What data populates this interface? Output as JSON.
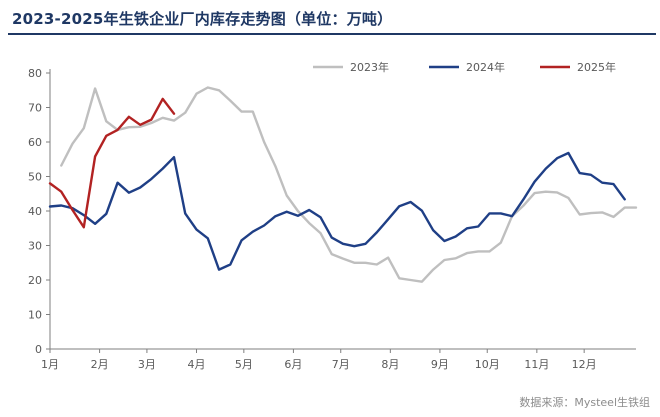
{
  "title": "2023-2025年生铁企业厂内库存走势图（单位：万吨）",
  "source": "数据来源：Mysteel生铁组",
  "chart_data": {
    "type": "line",
    "title": "2023-2025年生铁企业厂内库存走势图（单位：万吨）",
    "xlabel": "",
    "ylabel": "",
    "ylim": [
      0,
      80
    ],
    "yticks": [
      0,
      10,
      20,
      30,
      40,
      50,
      60,
      70,
      80
    ],
    "x_unit": "week",
    "x_range": [
      0,
      52
    ],
    "x_ticks": [
      {
        "label": "1月",
        "x": 0
      },
      {
        "label": "2月",
        "x": 4.4
      },
      {
        "label": "3月",
        "x": 8.6
      },
      {
        "label": "4月",
        "x": 13
      },
      {
        "label": "5月",
        "x": 17.2
      },
      {
        "label": "6月",
        "x": 21.6
      },
      {
        "label": "7月",
        "x": 25.8
      },
      {
        "label": "8月",
        "x": 30.2
      },
      {
        "label": "9月",
        "x": 34.6
      },
      {
        "label": "10月",
        "x": 38.8
      },
      {
        "label": "11月",
        "x": 43.2
      },
      {
        "label": "12月",
        "x": 47.4
      }
    ],
    "grid": false,
    "legend_position": "top-right",
    "series": [
      {
        "name": "2023年",
        "color": "#bfbfbf",
        "values": [
          [
            1,
            53.2
          ],
          [
            2,
            59.5
          ],
          [
            3,
            64
          ],
          [
            4,
            75.5
          ],
          [
            5,
            66
          ],
          [
            6,
            63.5
          ],
          [
            7,
            64.3
          ],
          [
            8,
            64.4
          ],
          [
            9,
            65.5
          ],
          [
            10,
            67
          ],
          [
            11,
            66.2
          ],
          [
            12,
            68.5
          ],
          [
            13,
            74
          ],
          [
            14,
            75.8
          ],
          [
            15,
            75
          ],
          [
            16,
            72
          ],
          [
            17,
            68.8
          ],
          [
            18,
            68.8
          ],
          [
            19,
            60
          ],
          [
            20,
            53
          ],
          [
            21,
            44.5
          ],
          [
            22,
            40
          ],
          [
            23,
            36.5
          ],
          [
            24,
            33.6
          ],
          [
            25,
            27.5
          ],
          [
            26,
            26.2
          ],
          [
            27,
            25
          ],
          [
            28,
            25
          ],
          [
            29,
            24.5
          ],
          [
            30,
            26.5
          ],
          [
            31,
            20.5
          ],
          [
            32,
            20
          ],
          [
            33,
            19.5
          ],
          [
            34,
            23
          ],
          [
            35,
            25.8
          ],
          [
            36,
            26.3
          ],
          [
            37,
            27.8
          ],
          [
            38,
            28.3
          ],
          [
            39,
            28.3
          ],
          [
            40,
            30.8
          ],
          [
            41,
            38.5
          ],
          [
            42,
            41.5
          ],
          [
            43,
            45.2
          ],
          [
            44,
            45.6
          ],
          [
            45,
            45.4
          ],
          [
            46,
            43.8
          ],
          [
            47,
            39
          ],
          [
            48,
            39.4
          ],
          [
            49,
            39.6
          ],
          [
            50,
            38.3
          ],
          [
            51,
            41
          ],
          [
            52,
            41
          ]
        ]
      },
      {
        "name": "2024年",
        "color": "#1f3f86",
        "values": [
          [
            0,
            41.3
          ],
          [
            1,
            41.6
          ],
          [
            2,
            40.8
          ],
          [
            3,
            38.8
          ],
          [
            4,
            36.3
          ],
          [
            5,
            39.2
          ],
          [
            6,
            48.2
          ],
          [
            7,
            45.3
          ],
          [
            8,
            46.8
          ],
          [
            9,
            49.3
          ],
          [
            10,
            52.3
          ],
          [
            11,
            55.6
          ],
          [
            12,
            39.3
          ],
          [
            13,
            34.6
          ],
          [
            14,
            32.1
          ],
          [
            15,
            23
          ],
          [
            16,
            24.5
          ],
          [
            17,
            31.5
          ],
          [
            18,
            34
          ],
          [
            19,
            35.8
          ],
          [
            20,
            38.5
          ],
          [
            21,
            39.8
          ],
          [
            22,
            38.6
          ],
          [
            23,
            40.3
          ],
          [
            24,
            38.2
          ],
          [
            25,
            32.3
          ],
          [
            26,
            30.5
          ],
          [
            27,
            29.8
          ],
          [
            28,
            30.5
          ],
          [
            29,
            33.8
          ],
          [
            30,
            37.6
          ],
          [
            31,
            41.4
          ],
          [
            32,
            42.6
          ],
          [
            33,
            40.1
          ],
          [
            34,
            34.4
          ],
          [
            35,
            31.3
          ],
          [
            36,
            32.6
          ],
          [
            37,
            35
          ],
          [
            38,
            35.5
          ],
          [
            39,
            39.3
          ],
          [
            40,
            39.3
          ],
          [
            41,
            38.5
          ],
          [
            42,
            43.3
          ],
          [
            43,
            48.5
          ],
          [
            44,
            52.3
          ],
          [
            45,
            55.3
          ],
          [
            46,
            56.8
          ],
          [
            47,
            51
          ],
          [
            48,
            50.5
          ],
          [
            49,
            48.2
          ],
          [
            50,
            47.8
          ],
          [
            51,
            43.4
          ]
        ]
      },
      {
        "name": "2025年",
        "color": "#b22222",
        "values": [
          [
            0,
            48
          ],
          [
            1,
            45.6
          ],
          [
            2,
            40.3
          ],
          [
            3,
            35.3
          ],
          [
            4,
            55.8
          ],
          [
            5,
            61.8
          ],
          [
            6,
            63.5
          ],
          [
            7,
            67.3
          ],
          [
            8,
            65
          ],
          [
            9,
            66.5
          ],
          [
            10,
            72.5
          ],
          [
            11,
            68.2
          ]
        ]
      }
    ]
  }
}
